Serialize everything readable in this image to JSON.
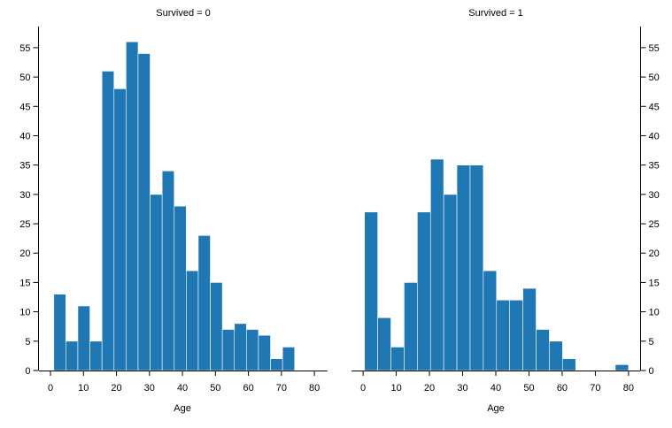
{
  "chart_data": [
    {
      "type": "histogram",
      "title": "Survived = 0",
      "xlabel": "Age",
      "color": "#1f77b4",
      "yaxis_side": "left",
      "bins": [
        1,
        4.65,
        8.3,
        11.95,
        15.6,
        19.25,
        22.9,
        26.55,
        30.2,
        33.85,
        37.5,
        41.15,
        44.8,
        48.45,
        52.1,
        55.75,
        59.4,
        63.05,
        66.7,
        70.35,
        74
      ],
      "counts": [
        13,
        5,
        11,
        5,
        51,
        48,
        56,
        54,
        30,
        34,
        28,
        17,
        23,
        15,
        7,
        8,
        7,
        6,
        2,
        4
      ],
      "xlim": [
        -3.5,
        84
      ],
      "xticks": [
        0,
        10,
        20,
        30,
        40,
        50,
        60,
        70,
        80
      ],
      "ylim": [
        0,
        58.6
      ],
      "yticks": [
        0,
        5,
        10,
        15,
        20,
        25,
        30,
        35,
        40,
        45,
        50,
        55
      ]
    },
    {
      "type": "histogram",
      "title": "Survived = 1",
      "xlabel": "Age",
      "color": "#1f77b4",
      "yaxis_side": "right",
      "bins": [
        0.42,
        4.4,
        8.38,
        12.36,
        16.34,
        20.32,
        24.29,
        28.27,
        32.25,
        36.23,
        40.21,
        44.19,
        48.17,
        52.15,
        56.13,
        60.1,
        64.08,
        68.06,
        72.04,
        76.02,
        80
      ],
      "counts": [
        27,
        9,
        4,
        15,
        27,
        36,
        30,
        35,
        35,
        17,
        12,
        12,
        14,
        7,
        5,
        2,
        0,
        0,
        0,
        1
      ],
      "xlim": [
        -3.5,
        83.5
      ],
      "xticks": [
        0,
        10,
        20,
        30,
        40,
        50,
        60,
        70,
        80
      ],
      "ylim": [
        0,
        58.6
      ],
      "yticks": [
        0,
        5,
        10,
        15,
        20,
        25,
        30,
        35,
        40,
        45,
        50,
        55
      ]
    }
  ]
}
